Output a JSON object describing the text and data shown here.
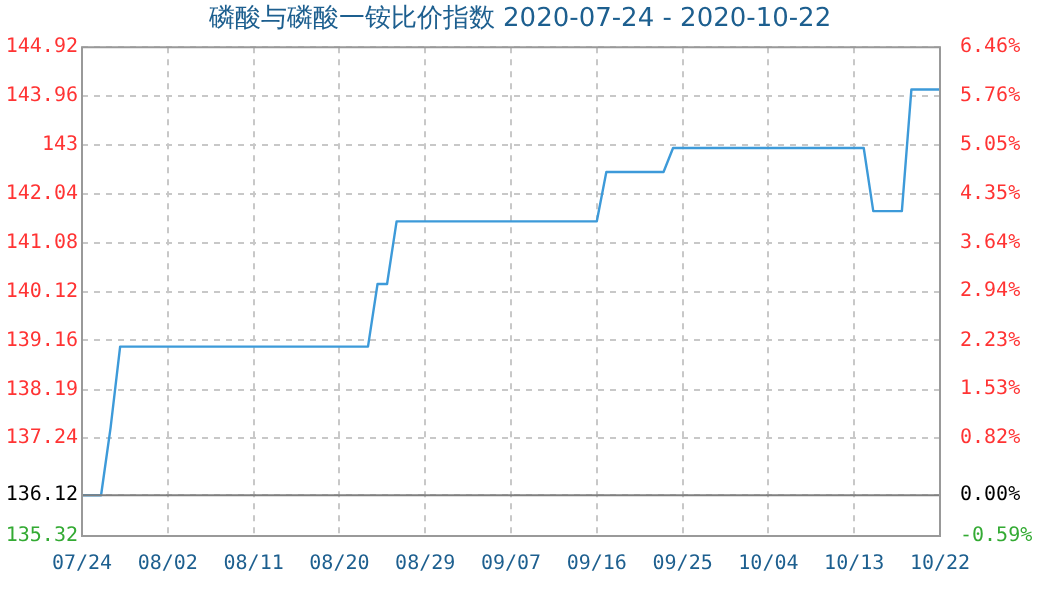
{
  "chart_data": {
    "type": "line",
    "title": "磷酸与磷酸一铵比价指数 2020-07-24 - 2020-10-22",
    "x": [
      "2020-07-24",
      "2020-07-26",
      "2020-07-27",
      "2020-07-28",
      "2020-08-23",
      "2020-08-24",
      "2020-08-25",
      "2020-08-26",
      "2020-09-16",
      "2020-09-17",
      "2020-09-23",
      "2020-09-24",
      "2020-10-14",
      "2020-10-15",
      "2020-10-18",
      "2020-10-19",
      "2020-10-22"
    ],
    "series": [
      {
        "color": "#3d9ad9",
        "values": [
          136.12,
          136.12,
          137.45,
          139.04,
          139.04,
          140.27,
          140.27,
          141.5,
          141.5,
          142.47,
          142.47,
          142.94,
          142.94,
          141.7,
          141.7,
          144.09,
          144.09
        ]
      }
    ],
    "xlim": [
      "2020-07-24",
      "2020-10-22"
    ],
    "xticks": [
      {
        "value": "2020-07-24",
        "label": "07/24"
      },
      {
        "value": "2020-08-02",
        "label": "08/02"
      },
      {
        "value": "2020-08-11",
        "label": "08/11"
      },
      {
        "value": "2020-08-20",
        "label": "08/20"
      },
      {
        "value": "2020-08-29",
        "label": "08/29"
      },
      {
        "value": "2020-09-07",
        "label": "09/07"
      },
      {
        "value": "2020-09-16",
        "label": "09/16"
      },
      {
        "value": "2020-09-25",
        "label": "09/25"
      },
      {
        "value": "2020-10-04",
        "label": "10/04"
      },
      {
        "value": "2020-10-13",
        "label": "10/13"
      },
      {
        "value": "2020-10-22",
        "label": "10/22"
      }
    ],
    "ylim": [
      135.32,
      144.92
    ],
    "yticks": [
      135.32,
      136.12,
      137.24,
      138.19,
      139.16,
      140.12,
      141.08,
      142.04,
      143,
      143.96,
      144.92
    ],
    "y2lim": [
      -0.59,
      6.46
    ],
    "y2ticks": [
      {
        "value": -0.59,
        "label": "-0.59%"
      },
      {
        "value": 0,
        "label": "0.00%"
      },
      {
        "value": 0.82,
        "label": "0.82%"
      },
      {
        "value": 1.53,
        "label": "1.53%"
      },
      {
        "value": 2.23,
        "label": "2.23%"
      },
      {
        "value": 2.94,
        "label": "2.94%"
      },
      {
        "value": 3.64,
        "label": "3.64%"
      },
      {
        "value": 4.35,
        "label": "4.35%"
      },
      {
        "value": 5.05,
        "label": "5.05%"
      },
      {
        "value": 5.76,
        "label": "5.76%"
      },
      {
        "value": 6.46,
        "label": "6.46%"
      }
    ],
    "ref_lines": [
      {
        "axis": "y",
        "value": 136.12,
        "color": "#808080"
      }
    ],
    "grid": true,
    "legend": false,
    "marker": "none",
    "line_style": "solid"
  }
}
